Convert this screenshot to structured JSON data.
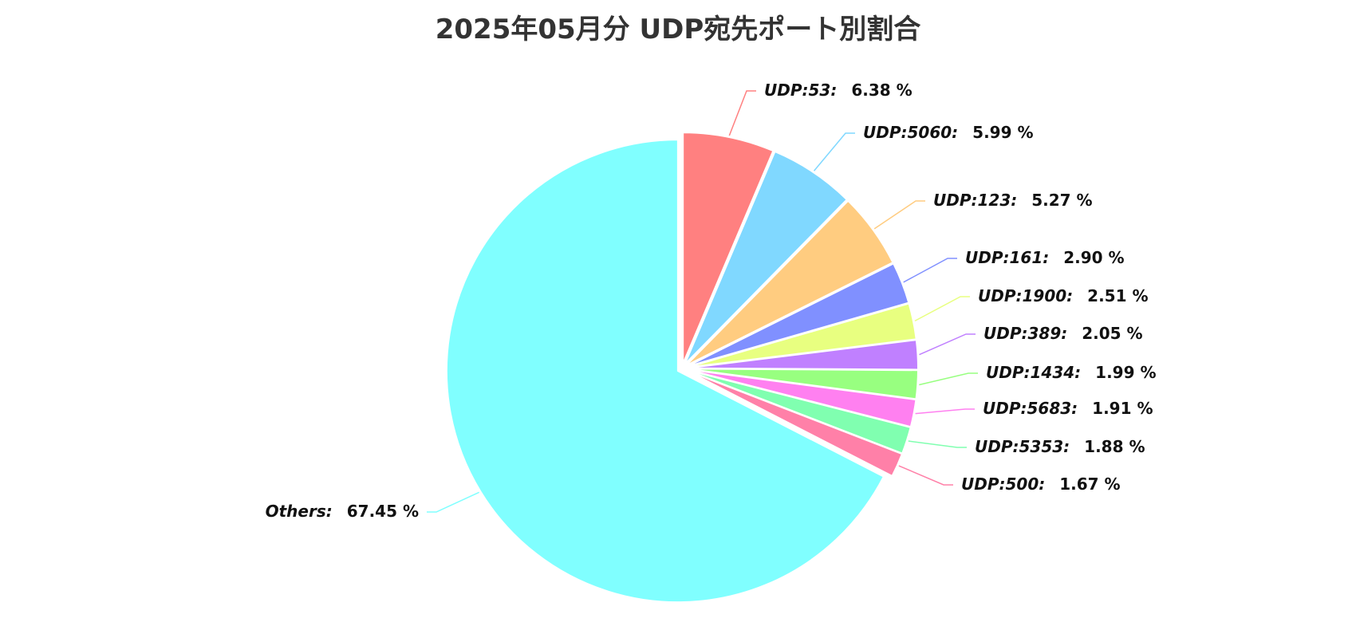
{
  "chart_data": {
    "type": "pie",
    "title": "2025年05月分 UDP宛先ポート別割合",
    "slices": [
      {
        "label": "UDP:53",
        "value": 6.38,
        "display": "6.38 %",
        "color": "#FF8080"
      },
      {
        "label": "UDP:5060",
        "value": 5.99,
        "display": "5.99 %",
        "color": "#80D8FF"
      },
      {
        "label": "UDP:123",
        "value": 5.27,
        "display": "5.27 %",
        "color": "#FFCC80"
      },
      {
        "label": "UDP:161",
        "value": 2.9,
        "display": "2.90 %",
        "color": "#8090FF"
      },
      {
        "label": "UDP:1900",
        "value": 2.51,
        "display": "2.51 %",
        "color": "#E8FF80"
      },
      {
        "label": "UDP:389",
        "value": 2.05,
        "display": "2.05 %",
        "color": "#C080FF"
      },
      {
        "label": "UDP:1434",
        "value": 1.99,
        "display": "1.99 %",
        "color": "#98FF80"
      },
      {
        "label": "UDP:5683",
        "value": 1.91,
        "display": "1.91 %",
        "color": "#FF80F0"
      },
      {
        "label": "UDP:5353",
        "value": 1.88,
        "display": "1.88 %",
        "color": "#80FFB0"
      },
      {
        "label": "UDP:500",
        "value": 1.67,
        "display": "1.67 %",
        "color": "#FF80A8"
      },
      {
        "label": "Others",
        "value": 67.45,
        "display": "67.45 %",
        "color": "#80FFFF"
      }
    ],
    "start_angle": "12 o'clock",
    "direction": "clockwise",
    "exploded_slices": true,
    "legend": "none",
    "labels": "outside with leader lines"
  }
}
